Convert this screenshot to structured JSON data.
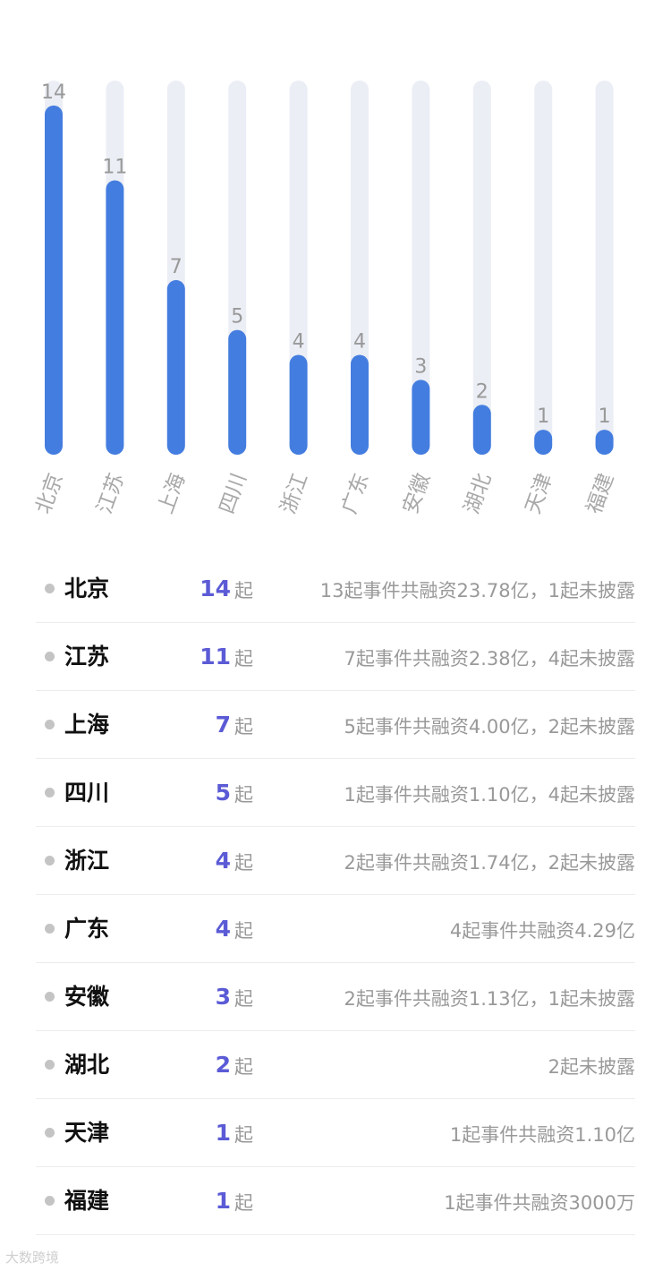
{
  "chart_data": {
    "type": "bar",
    "categories": [
      "北京",
      "江苏",
      "上海",
      "四川",
      "浙江",
      "广东",
      "安徽",
      "湖北",
      "天津",
      "福建"
    ],
    "values": [
      14,
      11,
      7,
      5,
      4,
      4,
      3,
      2,
      1,
      1
    ],
    "ylim": [
      0,
      15
    ],
    "grid": false,
    "bar_color": "#447de0",
    "track_color": "#ebeef5"
  },
  "list": {
    "unit": "起",
    "rows": [
      {
        "province": "北京",
        "count": "14",
        "desc": "13起事件共融资23.78亿，1起未披露"
      },
      {
        "province": "江苏",
        "count": "11",
        "desc": "7起事件共融资2.38亿，4起未披露"
      },
      {
        "province": "上海",
        "count": "7",
        "desc": "5起事件共融资4.00亿，2起未披露"
      },
      {
        "province": "四川",
        "count": "5",
        "desc": "1起事件共融资1.10亿，4起未披露"
      },
      {
        "province": "浙江",
        "count": "4",
        "desc": "2起事件共融资1.74亿，2起未披露"
      },
      {
        "province": "广东",
        "count": "4",
        "desc": "4起事件共融资4.29亿"
      },
      {
        "province": "安徽",
        "count": "3",
        "desc": "2起事件共融资1.13亿，1起未披露"
      },
      {
        "province": "湖北",
        "count": "2",
        "desc": "2起未披露"
      },
      {
        "province": "天津",
        "count": "1",
        "desc": "1起事件共融资1.10亿"
      },
      {
        "province": "福建",
        "count": "1",
        "desc": "1起事件共融资3000万"
      }
    ]
  },
  "watermark": "大数跨境",
  "colors": {
    "accent": "#5b5bd6",
    "dot": "#c4c4c4",
    "muted_text": "#999999"
  }
}
